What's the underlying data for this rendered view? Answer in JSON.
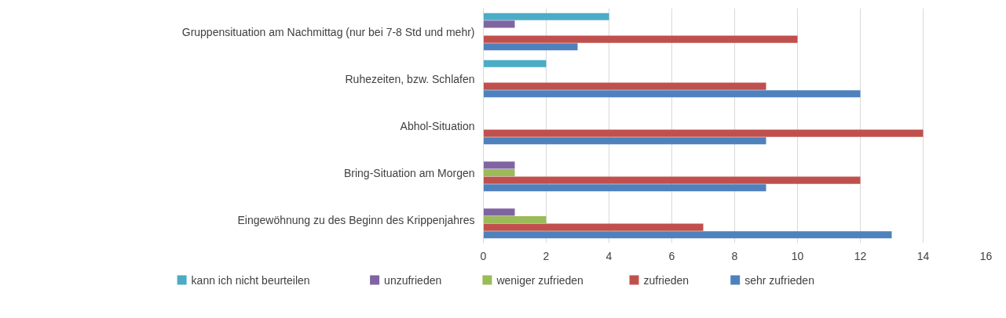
{
  "chart_data": {
    "type": "bar",
    "orientation": "horizontal",
    "categories": [
      "Gruppensituation am Nachmittag (nur bei 7-8 Std und mehr)",
      "Ruhezeiten, bzw. Schlafen",
      "Abhol-Situation",
      "Bring-Situation am Morgen",
      "Eingewöhnung zu des Beginn des Krippenjahres"
    ],
    "series": [
      {
        "name": "sehr zufrieden",
        "color": "#4f81bd",
        "values": [
          3,
          12,
          9,
          9,
          13
        ]
      },
      {
        "name": "zufrieden",
        "color": "#c0504d",
        "values": [
          10,
          9,
          14,
          12,
          7
        ]
      },
      {
        "name": "weniger zufrieden",
        "color": "#9bbb59",
        "values": [
          null,
          null,
          null,
          1,
          2
        ]
      },
      {
        "name": "unzufrieden",
        "color": "#8064a2",
        "values": [
          1,
          null,
          null,
          1,
          1
        ]
      },
      {
        "name": "kann ich nicht beurteilen",
        "color": "#4bacc6",
        "values": [
          4,
          2,
          null,
          null,
          null
        ]
      }
    ],
    "xlim": [
      0,
      16
    ],
    "xticks": [
      0,
      2,
      4,
      6,
      8,
      10,
      12,
      14,
      16
    ],
    "grid": "x",
    "legend": "bottom"
  }
}
